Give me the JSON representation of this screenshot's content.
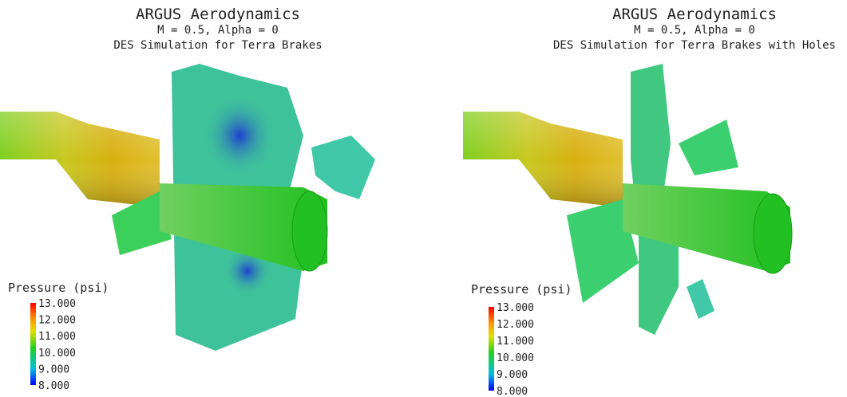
{
  "panels": [
    {
      "title": "ARGUS Aerodynamics",
      "subtitle": "M = 0.5, Alpha = 0",
      "caption": "DES Simulation for Terra Brakes",
      "legend": {
        "title": "Pressure (psi)",
        "ticks": [
          "13.000",
          "12.000",
          "11.000",
          "10.000",
          "9.000",
          "8.000"
        ]
      }
    },
    {
      "title": "ARGUS Aerodynamics",
      "subtitle": "M = 0.5, Alpha = 0",
      "caption": "DES Simulation for Terra Brakes with Holes",
      "legend": {
        "title": "Pressure (psi)",
        "ticks": [
          "13.000",
          "12.000",
          "11.000",
          "10.000",
          "9.000",
          "8.000"
        ]
      }
    }
  ]
}
